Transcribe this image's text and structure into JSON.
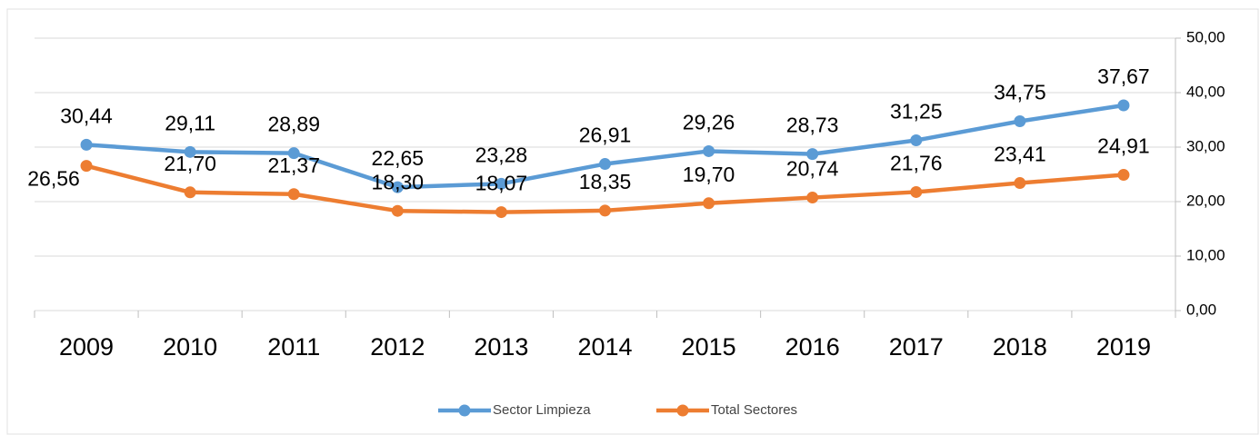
{
  "chart_data": {
    "type": "line",
    "categories": [
      "2009",
      "2010",
      "2011",
      "2012",
      "2013",
      "2014",
      "2015",
      "2016",
      "2017",
      "2018",
      "2019"
    ],
    "series": [
      {
        "name": "Sector Limpieza",
        "color": "#5b9bd5",
        "values": [
          30.44,
          29.11,
          28.89,
          22.65,
          23.28,
          26.91,
          29.26,
          28.73,
          31.25,
          34.75,
          37.67
        ],
        "value_labels": [
          "30,44",
          "29,11",
          "28,89",
          "22,65",
          "23,28",
          "26,91",
          "29,26",
          "28,73",
          "31,25",
          "34,75",
          "37,67"
        ]
      },
      {
        "name": "Total Sectores",
        "color": "#ed7d31",
        "values": [
          26.56,
          21.7,
          21.37,
          18.3,
          18.07,
          18.35,
          19.7,
          20.74,
          21.76,
          23.41,
          24.91
        ],
        "value_labels": [
          "26,56",
          "21,70",
          "21,37",
          "18,30",
          "18,07",
          "18,35",
          "19,70",
          "20,74",
          "21,76",
          "23,41",
          "24,91"
        ]
      }
    ],
    "ylim": [
      0,
      50
    ],
    "yticks": [
      {
        "value": 0,
        "label": "0,00"
      },
      {
        "value": 10,
        "label": "10,00"
      },
      {
        "value": 20,
        "label": "20,00"
      },
      {
        "value": 30,
        "label": "30,00"
      },
      {
        "value": 40,
        "label": "40,00"
      },
      {
        "value": 50,
        "label": "50,00"
      }
    ],
    "grid": true,
    "legend": "bottom"
  }
}
